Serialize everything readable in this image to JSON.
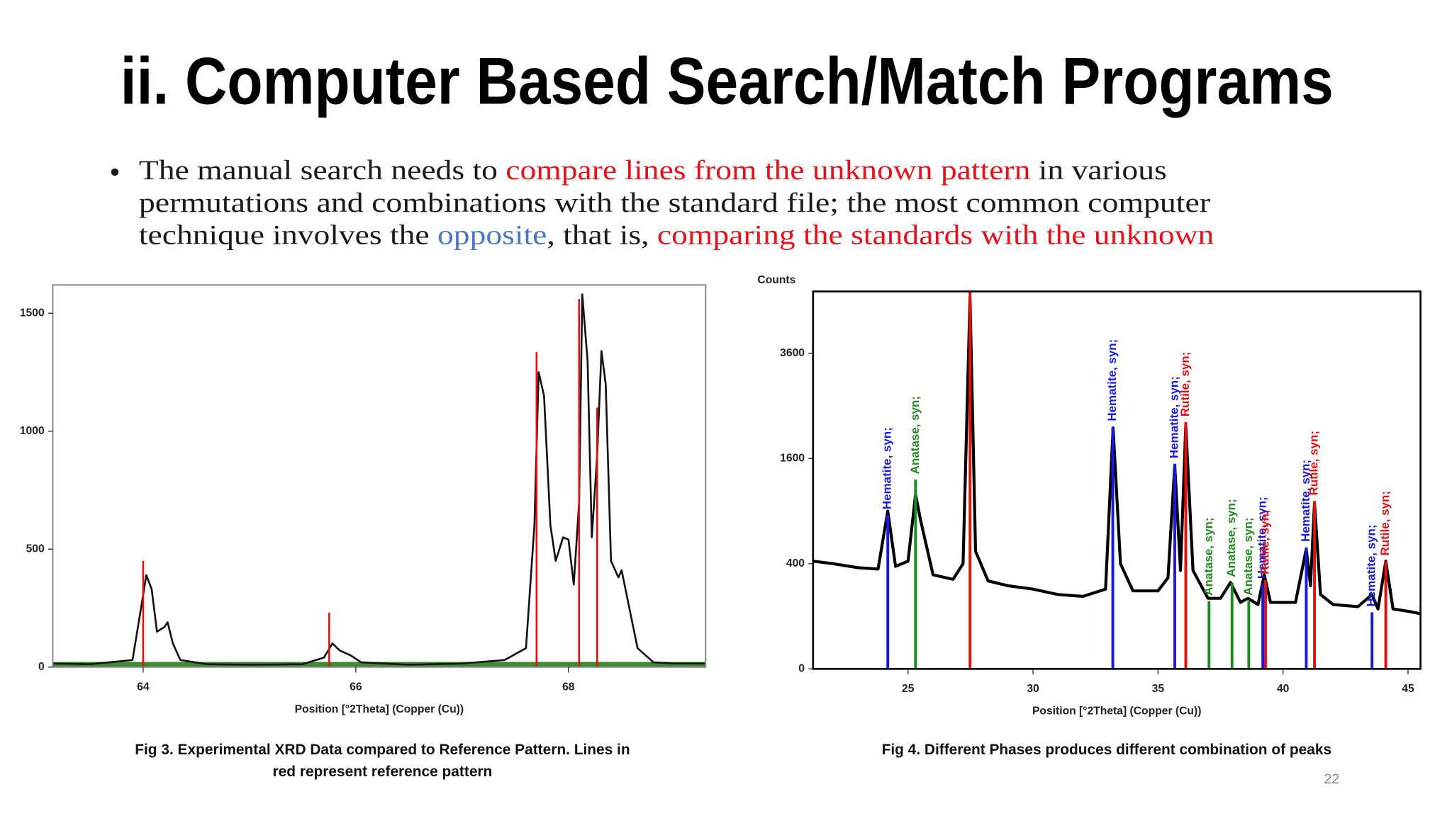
{
  "slide": {
    "title": "ii. Computer Based Search/Match Programs",
    "bullet": [
      [
        {
          "text": "The manual search needs to ",
          "color": "#1a1a1a"
        },
        {
          "text": "compare lines from the unknown pattern",
          "color": "#e3121b"
        },
        {
          "text": " in various",
          "color": "#1a1a1a"
        }
      ],
      [
        {
          "text": "permutations and combinations with the standard file; the most common computer",
          "color": "#1a1a1a"
        }
      ],
      [
        {
          "text": "technique involves the ",
          "color": "#1a1a1a"
        },
        {
          "text": "opposite",
          "color": "#4a78c2"
        },
        {
          "text": ", that is, ",
          "color": "#1a1a1a"
        },
        {
          "text": "comparing the standards with the unknown",
          "color": "#e3121b"
        }
      ]
    ],
    "page_number": "22"
  },
  "chart_data": [
    {
      "type": "xrd",
      "caption": [
        "Fig 3. Experimental XRD Data compared to Reference Pattern. Lines in",
        "red represent reference pattern"
      ],
      "x_label": "Position [°2Theta] (Copper (Cu))",
      "xlim": [
        63.15,
        69.29
      ],
      "xticks": [
        64,
        66,
        68
      ],
      "ylim": [
        0,
        1620
      ],
      "yticks": [
        0,
        500,
        1000,
        1500
      ],
      "yscale": "linear",
      "series": [
        {
          "kind": "line",
          "color": "#111111",
          "x": [
            63.15,
            63.5,
            63.9,
            63.98,
            64.03,
            64.08,
            64.13,
            64.2,
            64.23,
            64.28,
            64.35,
            64.6,
            65.0,
            65.5,
            65.7,
            65.78,
            65.85,
            65.95,
            66.05,
            66.5,
            67.0,
            67.4,
            67.6,
            67.68,
            67.72,
            67.77,
            67.83,
            67.88,
            67.95,
            68.0,
            68.05,
            68.1,
            68.13,
            68.18,
            68.22,
            68.27,
            68.31,
            68.35,
            68.4,
            68.47,
            68.5,
            68.55,
            68.65,
            68.8,
            69.0,
            69.29
          ],
          "values": [
            15,
            12,
            30,
            250,
            390,
            330,
            150,
            170,
            190,
            100,
            30,
            12,
            10,
            12,
            40,
            100,
            70,
            50,
            20,
            10,
            15,
            30,
            80,
            600,
            1250,
            1150,
            600,
            450,
            550,
            540,
            350,
            700,
            1580,
            1300,
            550,
            900,
            1340,
            1200,
            450,
            380,
            410,
            300,
            80,
            20,
            15,
            15
          ]
        },
        {
          "kind": "stick",
          "color": "#e31010",
          "x": [
            64.0,
            65.75,
            67.7,
            68.1,
            68.27
          ],
          "values": [
            450,
            230,
            1335,
            1560,
            1100
          ]
        }
      ]
    },
    {
      "type": "xrd",
      "caption": [
        "Fig 4. Different Phases produces different combination of peaks"
      ],
      "x_label": "Position [°2Theta] (Copper (Cu))",
      "y_label": "Counts",
      "xlim": [
        21.2,
        45.5
      ],
      "xticks": [
        25,
        30,
        35,
        40,
        45
      ],
      "ylim": [
        0,
        5150
      ],
      "yticks": [
        0,
        400,
        1600,
        3600
      ],
      "yscale": "sqrt",
      "series": [
        {
          "kind": "line",
          "color": "#000000",
          "x": [
            21.2,
            22,
            23,
            23.8,
            24.19,
            24.5,
            25.0,
            25.3,
            25.5,
            26.0,
            26.8,
            27.2,
            27.48,
            27.7,
            28.2,
            29,
            30,
            31,
            32,
            32.9,
            33.2,
            33.5,
            34,
            35,
            35.4,
            35.67,
            35.9,
            36.11,
            36.4,
            37.0,
            37.5,
            37.9,
            38.3,
            38.6,
            39.0,
            39.25,
            39.5,
            40.5,
            40.93,
            41.1,
            41.26,
            41.5,
            42,
            43,
            43.56,
            43.8,
            44.11,
            44.4,
            45,
            45.5
          ],
          "values": [
            420,
            400,
            370,
            360,
            900,
            380,
            420,
            1100,
            800,
            320,
            290,
            400,
            5000,
            500,
            280,
            250,
            230,
            200,
            190,
            230,
            2100,
            400,
            220,
            220,
            300,
            1500,
            350,
            2150,
            350,
            180,
            180,
            270,
            160,
            180,
            150,
            320,
            160,
            160,
            520,
            250,
            1000,
            200,
            150,
            140,
            200,
            130,
            420,
            130,
            120,
            110
          ]
        },
        {
          "kind": "stick",
          "name": "Hematite, syn;",
          "color": "#1a1adc",
          "x": [
            24.19,
            33.19,
            35.67,
            39.19,
            40.93,
            43.56
          ],
          "values": [
            857,
            2119,
            1519,
            258,
            534,
            116
          ]
        },
        {
          "kind": "stick",
          "name": "Anatase, syn;",
          "color": "#1f8a1f",
          "x": [
            25.3,
            37.04,
            37.96,
            38.63
          ],
          "values": [
            1295,
            166,
            269,
            166
          ]
        },
        {
          "kind": "stick",
          "name": "Rutile, syn;",
          "color": "#e31010",
          "x": [
            27.48,
            36.11,
            39.3,
            41.26,
            44.11
          ],
          "values": [
            5150,
            2201,
            286,
            1019,
            419
          ]
        }
      ]
    }
  ]
}
